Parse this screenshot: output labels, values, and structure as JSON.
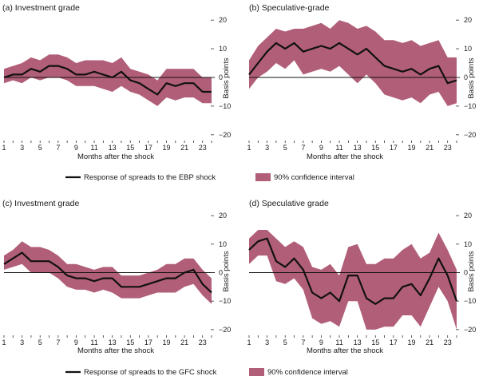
{
  "colors": {
    "band": "#b15f78",
    "line": "#111111",
    "zero": "#111111",
    "text": "#1a1a1a"
  },
  "legends": [
    {
      "line_label": "Response of spreads to the EBP shock",
      "band_label": "90% confidence interval"
    },
    {
      "line_label": "Response of spreads to the GFC shock",
      "band_label": "90% confidence interval"
    }
  ],
  "chart_data": [
    {
      "type": "line",
      "title": "(a) Investment grade",
      "xlabel": "Months after the shock",
      "ylabel": "Basis points",
      "x": [
        1,
        2,
        3,
        4,
        5,
        6,
        7,
        8,
        9,
        10,
        11,
        12,
        13,
        14,
        15,
        16,
        17,
        18,
        19,
        20,
        21,
        22,
        23,
        24
      ],
      "xticks": [
        1,
        3,
        5,
        7,
        9,
        11,
        13,
        15,
        17,
        19,
        21,
        23
      ],
      "ylim": [
        -22,
        22
      ],
      "yticks": [
        20,
        10,
        0,
        -10,
        -20
      ],
      "series": [
        {
          "name": "Response of spreads to the EBP shock",
          "values": [
            0,
            1,
            1,
            3,
            2,
            4,
            4,
            3,
            1,
            1,
            2,
            1,
            0,
            2,
            -1,
            -2,
            -4,
            -6,
            -2,
            -3,
            -2,
            -2,
            -5,
            -5
          ]
        },
        {
          "name": "90% confidence interval upper",
          "values": [
            3,
            4,
            5,
            7,
            6,
            8,
            8,
            7,
            5,
            6,
            6,
            6,
            5,
            7,
            3,
            2,
            1,
            -1,
            3,
            3,
            3,
            3,
            0,
            0
          ]
        },
        {
          "name": "90% confidence interval lower",
          "values": [
            -2,
            -1,
            -2,
            0,
            -1,
            0,
            0,
            -1,
            -3,
            -3,
            -3,
            -4,
            -5,
            -3,
            -5,
            -6,
            -8,
            -10,
            -7,
            -8,
            -7,
            -7,
            -9,
            -9
          ]
        }
      ]
    },
    {
      "type": "line",
      "title": "(b) Speculative-grade",
      "xlabel": "Months after the shock",
      "ylabel": "Basis points",
      "x": [
        1,
        2,
        3,
        4,
        5,
        6,
        7,
        8,
        9,
        10,
        11,
        12,
        13,
        14,
        15,
        16,
        17,
        18,
        19,
        20,
        21,
        22,
        23,
        24
      ],
      "xticks": [
        1,
        3,
        5,
        7,
        9,
        11,
        13,
        15,
        17,
        19,
        21,
        23
      ],
      "ylim": [
        -22,
        22
      ],
      "yticks": [
        20,
        10,
        0,
        -10,
        -20
      ],
      "series": [
        {
          "name": "Response of spreads to the EBP shock",
          "values": [
            1,
            5,
            9,
            12,
            10,
            12,
            9,
            10,
            11,
            10,
            12,
            10,
            8,
            10,
            7,
            4,
            3,
            2,
            3,
            1,
            3,
            4,
            -2,
            -1
          ]
        },
        {
          "name": "90% confidence interval upper",
          "values": [
            6,
            11,
            14,
            17,
            16,
            17,
            17,
            18,
            19,
            17,
            20,
            19,
            17,
            18,
            16,
            13,
            13,
            12,
            13,
            11,
            12,
            13,
            7,
            7
          ]
        },
        {
          "name": "90% confidence interval lower",
          "values": [
            -4,
            0,
            2,
            5,
            3,
            6,
            1,
            2,
            3,
            2,
            4,
            1,
            -2,
            1,
            -2,
            -6,
            -7,
            -8,
            -7,
            -9,
            -6,
            -5,
            -10,
            -9
          ]
        }
      ]
    },
    {
      "type": "line",
      "title": "(c) Investment grade",
      "xlabel": "Months after the shock",
      "ylabel": "Basis points",
      "x": [
        1,
        2,
        3,
        4,
        5,
        6,
        7,
        8,
        9,
        10,
        11,
        12,
        13,
        14,
        15,
        16,
        17,
        18,
        19,
        20,
        21,
        22,
        23,
        24
      ],
      "xticks": [
        1,
        3,
        5,
        7,
        9,
        11,
        13,
        15,
        17,
        19,
        21,
        23
      ],
      "ylim": [
        -22,
        22
      ],
      "yticks": [
        20,
        10,
        0,
        -10,
        -20
      ],
      "series": [
        {
          "name": "Response of spreads to the GFC shock",
          "values": [
            3,
            5,
            7,
            4,
            4,
            4,
            2,
            -1,
            -2,
            -2,
            -3,
            -2,
            -2,
            -5,
            -5,
            -5,
            -4,
            -3,
            -2,
            -2,
            0,
            1,
            -4,
            -7
          ]
        },
        {
          "name": "90% confidence interval upper",
          "values": [
            6,
            8,
            11,
            9,
            9,
            8,
            6,
            3,
            3,
            2,
            1,
            2,
            2,
            -1,
            -1,
            -1,
            0,
            1,
            3,
            3,
            5,
            5,
            1,
            -2
          ]
        },
        {
          "name": "90% confidence interval lower",
          "values": [
            1,
            2,
            3,
            0,
            0,
            0,
            -2,
            -5,
            -6,
            -6,
            -7,
            -6,
            -7,
            -9,
            -9,
            -9,
            -8,
            -7,
            -7,
            -7,
            -5,
            -4,
            -8,
            -11
          ]
        }
      ]
    },
    {
      "type": "line",
      "title": "(d) Speculative grade",
      "xlabel": "Months after the shock",
      "ylabel": "Basis points",
      "x": [
        1,
        2,
        3,
        4,
        5,
        6,
        7,
        8,
        9,
        10,
        11,
        12,
        13,
        14,
        15,
        16,
        17,
        18,
        19,
        20,
        21,
        22,
        23,
        24
      ],
      "xticks": [
        1,
        3,
        5,
        7,
        9,
        11,
        13,
        15,
        17,
        19,
        21,
        23
      ],
      "ylim": [
        -22,
        22
      ],
      "yticks": [
        20,
        10,
        0,
        -10,
        -20
      ],
      "series": [
        {
          "name": "Response of spreads to the GFC shock",
          "values": [
            8,
            11,
            12,
            4,
            2,
            5,
            1,
            -7,
            -9,
            -7,
            -10,
            -1,
            -1,
            -9,
            -11,
            -9,
            -9,
            -5,
            -4,
            -8,
            -2,
            5,
            -1,
            -10
          ]
        },
        {
          "name": "90% confidence interval upper",
          "values": [
            12,
            15,
            15,
            12,
            9,
            11,
            9,
            2,
            1,
            3,
            -1,
            9,
            10,
            3,
            3,
            5,
            5,
            8,
            10,
            5,
            7,
            14,
            8,
            1
          ]
        },
        {
          "name": "90% confidence interval lower",
          "values": [
            3,
            6,
            6,
            -3,
            -4,
            -2,
            -6,
            -16,
            -18,
            -17,
            -19,
            -10,
            -10,
            -20,
            -20,
            -19,
            -19,
            -15,
            -15,
            -19,
            -12,
            -5,
            -10,
            -20
          ]
        }
      ]
    }
  ]
}
